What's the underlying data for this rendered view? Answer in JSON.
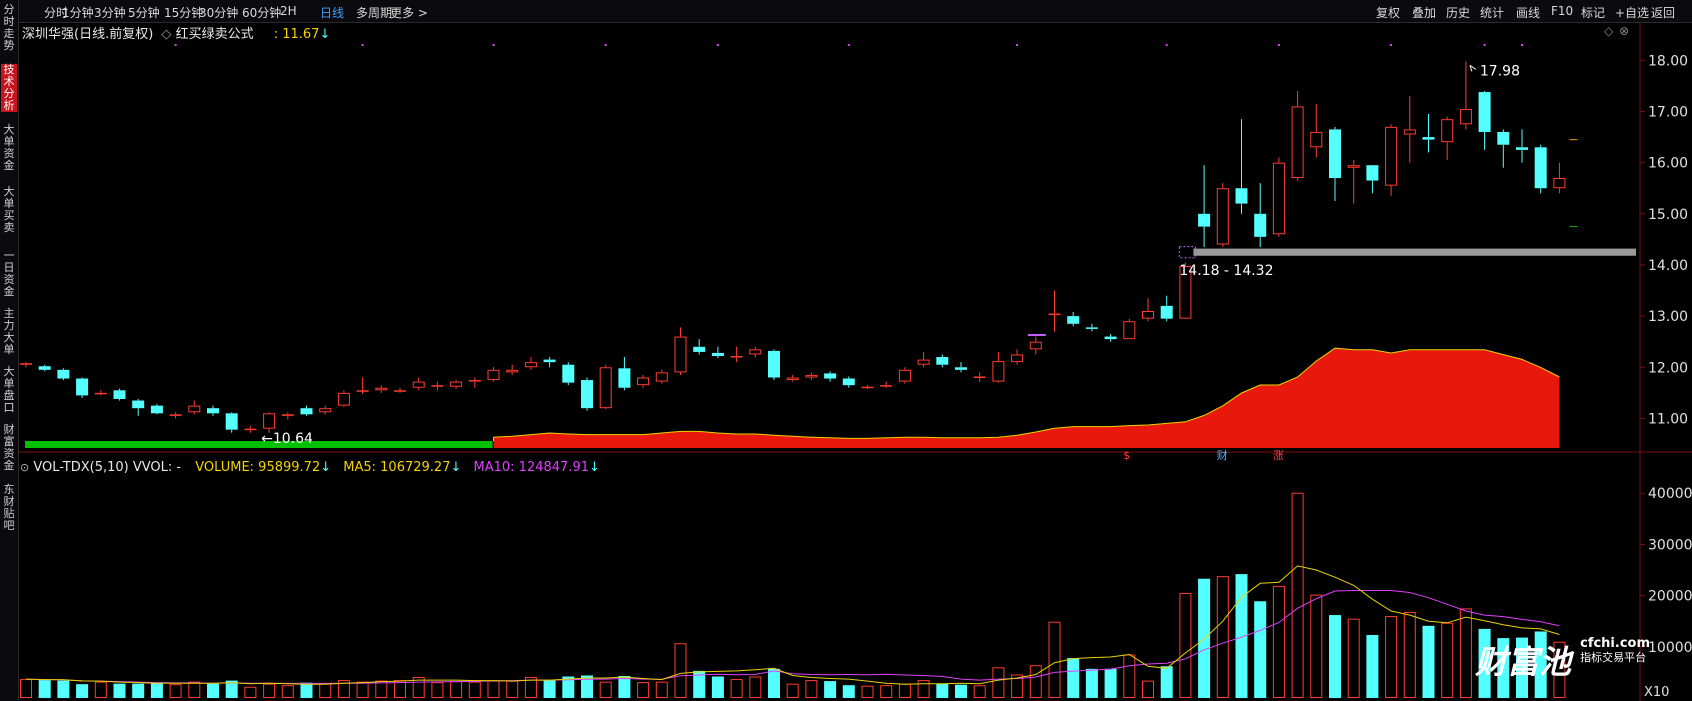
{
  "topbar": {
    "periods": [
      "分时",
      "1分钟",
      "3分钟",
      "5分钟",
      "15分钟",
      "30分钟",
      "60分钟",
      "2H",
      "日线",
      "多周期",
      "更多 >"
    ],
    "active": "日线",
    "tools": [
      "复权",
      "叠加",
      "历史",
      "统计",
      "画线",
      "F10",
      "标记",
      "+自选",
      "返回"
    ]
  },
  "sidebar": {
    "tabs": [
      "分时走势",
      "技术分析",
      "大单资金",
      "大单买卖",
      "一日资金",
      "主力大单",
      "大单盘口",
      "财富资金",
      "东财贴吧"
    ],
    "active": "技术分析"
  },
  "main_header": {
    "stock": "深圳华强(日线.前复权)",
    "diamond": "◇",
    "formula": "红买绿卖公式",
    "value": ": 11.67",
    "arrow": "↓"
  },
  "volume_header": {
    "collapse": "⊙",
    "name": "VOL-TDX(5,10) VVOL: -",
    "volume": "VOLUME: 95899.72",
    "ma5": "MA5: 106729.27",
    "ma10": "MA10: 124847.91",
    "arrow": "↓"
  },
  "corner_icons": [
    "◇",
    "⊗"
  ],
  "annotations": {
    "high": "17.98",
    "low": "10.64",
    "range": "14.18 - 14.32",
    "markers": [
      "$",
      "财",
      "涨"
    ]
  },
  "logo": {
    "name": "财富池",
    "domain": "cfchi.com",
    "tagline": "指标交易平台"
  },
  "colors": {
    "up": "#ff3b30",
    "down": "#54ffff",
    "ma5": "#e8d400",
    "ma10": "#e040fb",
    "fill_red": "#e8190c",
    "fill_green": "#00c000"
  },
  "chart_data": [
    {
      "type": "candlestick",
      "ylim": [
        10.5,
        18.3
      ],
      "yticks": [
        "18.00",
        "17.00",
        "16.00",
        "15.00",
        "14.00",
        "13.00",
        "12.00",
        "11.00"
      ],
      "candles": [
        [
          12.05,
          12.08,
          12.0,
          12.1
        ],
        [
          12.02,
          11.95,
          11.92,
          12.05
        ],
        [
          11.95,
          11.78,
          11.75,
          11.98
        ],
        [
          11.78,
          11.45,
          11.4,
          11.8
        ],
        [
          11.48,
          11.5,
          11.45,
          11.55
        ],
        [
          11.55,
          11.38,
          11.35,
          11.58
        ],
        [
          11.35,
          11.2,
          11.05,
          11.38
        ],
        [
          11.25,
          11.1,
          11.08,
          11.28
        ],
        [
          11.05,
          11.08,
          11.0,
          11.12
        ],
        [
          11.12,
          11.25,
          11.08,
          11.35
        ],
        [
          11.2,
          11.1,
          11.05,
          11.25
        ],
        [
          11.1,
          10.78,
          10.72,
          11.12
        ],
        [
          10.8,
          10.8,
          10.72,
          10.85
        ],
        [
          10.8,
          11.1,
          10.72,
          11.12
        ],
        [
          11.05,
          11.08,
          10.98,
          11.12
        ],
        [
          11.2,
          11.08,
          11.05,
          11.25
        ],
        [
          11.12,
          11.2,
          11.08,
          11.25
        ],
        [
          11.25,
          11.5,
          11.22,
          11.55
        ],
        [
          11.55,
          11.55,
          11.48,
          11.8
        ],
        [
          11.55,
          11.6,
          11.5,
          11.65
        ],
        [
          11.55,
          11.55,
          11.5,
          11.6
        ],
        [
          11.6,
          11.72,
          11.55,
          11.8
        ],
        [
          11.62,
          11.65,
          11.55,
          11.72
        ],
        [
          11.62,
          11.72,
          11.58,
          11.75
        ],
        [
          11.72,
          11.75,
          11.6,
          11.8
        ],
        [
          11.75,
          11.95,
          11.72,
          12.0
        ],
        [
          11.9,
          11.95,
          11.85,
          12.05
        ],
        [
          12.0,
          12.1,
          11.95,
          12.2
        ],
        [
          12.15,
          12.1,
          12.0,
          12.2
        ],
        [
          12.05,
          11.7,
          11.65,
          12.1
        ],
        [
          11.75,
          11.2,
          11.15,
          11.8
        ],
        [
          11.2,
          12.0,
          11.18,
          12.05
        ],
        [
          11.98,
          11.6,
          11.55,
          12.2
        ],
        [
          11.65,
          11.8,
          11.6,
          11.85
        ],
        [
          11.72,
          11.9,
          11.68,
          11.95
        ],
        [
          11.9,
          12.6,
          11.85,
          12.78
        ],
        [
          12.4,
          12.3,
          12.25,
          12.55
        ],
        [
          12.28,
          12.22,
          12.18,
          12.4
        ],
        [
          12.2,
          12.22,
          12.1,
          12.4
        ],
        [
          12.25,
          12.35,
          12.2,
          12.4
        ],
        [
          12.32,
          11.8,
          11.75,
          12.35
        ],
        [
          11.75,
          11.8,
          11.72,
          11.85
        ],
        [
          11.8,
          11.85,
          11.75,
          11.9
        ],
        [
          11.88,
          11.78,
          11.72,
          11.92
        ],
        [
          11.78,
          11.65,
          11.6,
          11.82
        ],
        [
          11.6,
          11.62,
          11.58,
          11.65
        ],
        [
          11.65,
          11.65,
          11.6,
          11.72
        ],
        [
          11.72,
          11.95,
          11.68,
          12.0
        ],
        [
          12.05,
          12.15,
          12.0,
          12.3
        ],
        [
          12.2,
          12.05,
          12.0,
          12.25
        ],
        [
          12.0,
          11.95,
          11.9,
          12.1
        ],
        [
          11.8,
          11.82,
          11.72,
          11.9
        ],
        [
          11.72,
          12.12,
          11.7,
          12.3
        ],
        [
          12.1,
          12.25,
          12.05,
          12.35
        ],
        [
          12.35,
          12.5,
          12.25,
          12.6
        ],
        [
          13.05,
          13.05,
          12.7,
          13.5
        ],
        [
          13.0,
          12.85,
          12.8,
          13.08
        ],
        [
          12.78,
          12.75,
          12.7,
          12.85
        ],
        [
          12.6,
          12.55,
          12.5,
          12.65
        ],
        [
          12.55,
          12.9,
          12.55,
          12.95
        ],
        [
          12.95,
          13.1,
          12.9,
          13.35
        ],
        [
          13.2,
          12.95,
          12.9,
          13.4
        ],
        [
          12.95,
          13.98,
          12.95,
          14.05
        ],
        [
          15.0,
          14.75,
          14.35,
          15.95
        ],
        [
          14.4,
          15.5,
          14.35,
          15.6
        ],
        [
          15.5,
          15.2,
          15.0,
          16.85
        ],
        [
          15.0,
          14.55,
          14.35,
          15.6
        ],
        [
          14.6,
          16.0,
          14.55,
          16.1
        ],
        [
          15.7,
          17.1,
          15.65,
          17.4
        ],
        [
          16.3,
          16.6,
          16.1,
          17.15
        ],
        [
          16.65,
          15.7,
          15.25,
          16.7
        ],
        [
          15.9,
          15.95,
          15.2,
          16.05
        ],
        [
          15.95,
          15.65,
          15.4,
          15.95
        ],
        [
          15.55,
          16.7,
          15.35,
          16.75
        ],
        [
          16.55,
          16.65,
          16.0,
          17.3
        ],
        [
          16.5,
          16.45,
          16.2,
          16.95
        ],
        [
          16.4,
          16.85,
          16.05,
          16.9
        ],
        [
          16.75,
          17.05,
          16.65,
          17.98
        ],
        [
          17.38,
          16.6,
          16.25,
          17.4
        ],
        [
          16.6,
          16.35,
          15.9,
          16.65
        ],
        [
          16.3,
          16.25,
          16.0,
          16.65
        ],
        [
          16.3,
          15.5,
          15.4,
          16.35
        ],
        [
          15.5,
          15.7,
          15.4,
          16.0
        ]
      ],
      "last_close_marker": 16.45,
      "secondary_marker": 14.75,
      "support_band": [
        14.18,
        14.32
      ],
      "indicator_level": [
        0,
        0,
        0,
        0,
        0,
        0,
        0,
        0,
        0,
        0,
        0,
        0,
        0,
        0,
        0,
        0,
        0,
        0,
        0,
        0,
        0,
        0,
        0,
        0,
        0,
        0.12,
        0.15,
        0.2,
        0.25,
        0.22,
        0.2,
        0.2,
        0.2,
        0.2,
        0.25,
        0.3,
        0.3,
        0.25,
        0.22,
        0.22,
        0.18,
        0.15,
        0.12,
        0.1,
        0.08,
        0.08,
        0.1,
        0.12,
        0.12,
        0.1,
        0.1,
        0.1,
        0.12,
        0.18,
        0.28,
        0.4,
        0.45,
        0.45,
        0.45,
        0.48,
        0.5,
        0.55,
        0.6,
        0.8,
        1.1,
        1.5,
        1.75,
        1.75,
        2.0,
        2.5,
        2.9,
        2.85,
        2.85,
        2.75,
        2.85,
        2.85,
        2.85,
        2.85,
        2.85,
        2.7,
        2.55,
        2.3,
        2.0
      ],
      "indicator_negative_until": 25
    },
    {
      "type": "bar",
      "title": "VOL-TDX(5,10)",
      "ylim": [
        0,
        42000
      ],
      "yticks": [
        "40000",
        "30000",
        "20000",
        "10000"
      ],
      "unit_label": "X10",
      "volumes": [
        3700,
        3500,
        3400,
        2700,
        3200,
        2800,
        2800,
        3000,
        2700,
        3200,
        2800,
        3400,
        2200,
        2800,
        2500,
        3000,
        2900,
        3500,
        3200,
        3400,
        3500,
        4100,
        3100,
        3300,
        3200,
        3400,
        3400,
        4100,
        3500,
        4200,
        4400,
        3200,
        4300,
        3100,
        3200,
        10700,
        5300,
        4200,
        3700,
        4200,
        5700,
        2800,
        3500,
        3300,
        2500,
        2400,
        2500,
        2800,
        3500,
        2800,
        2600,
        2500,
        6000,
        4600,
        6400,
        14900,
        7800,
        5700,
        5700,
        8500,
        3400,
        6200,
        20500,
        23300,
        23800,
        24200,
        18900,
        21900,
        40100,
        20200,
        16200,
        15500,
        12300,
        16000,
        16800,
        14100,
        14700,
        17500,
        13500,
        11700,
        11800,
        13000,
        11000
      ],
      "ma5": [
        3700,
        3600,
        3550,
        3350,
        3300,
        3100,
        3000,
        2900,
        2900,
        2900,
        2900,
        3000,
        2800,
        2900,
        2800,
        2700,
        2700,
        2900,
        3000,
        3200,
        3300,
        3500,
        3500,
        3500,
        3400,
        3400,
        3300,
        3500,
        3500,
        3700,
        3900,
        3900,
        4100,
        3800,
        3600,
        4800,
        5100,
        5200,
        5300,
        5500,
        5800,
        4400,
        4000,
        3800,
        3700,
        3300,
        2900,
        2700,
        2800,
        2800,
        2900,
        2800,
        3500,
        3900,
        4600,
        6900,
        7700,
        7900,
        8000,
        8500,
        6200,
        5800,
        8800,
        11500,
        15000,
        19700,
        22400,
        22600,
        25800,
        25000,
        23600,
        22000,
        19300,
        17000,
        16200,
        15000,
        14700,
        15800,
        15100,
        14300,
        13700,
        13500,
        12400
      ],
      "ma10": [
        3700,
        3600,
        3550,
        3350,
        3300,
        3200,
        3100,
        3000,
        2950,
        2950,
        2900,
        2950,
        2900,
        2900,
        2850,
        2850,
        2850,
        2900,
        2900,
        2950,
        3000,
        3100,
        3150,
        3200,
        3250,
        3350,
        3400,
        3500,
        3500,
        3550,
        3650,
        3700,
        3800,
        3700,
        3650,
        4350,
        4500,
        4650,
        4550,
        4600,
        5300,
        4750,
        4600,
        4550,
        4600,
        4550,
        4650,
        4500,
        4400,
        4200,
        3700,
        3500,
        3700,
        3800,
        4100,
        5000,
        5250,
        5450,
        5650,
        6300,
        6650,
        6800,
        7650,
        9400,
        10700,
        11900,
        13200,
        14750,
        17550,
        19400,
        20900,
        21000,
        21000,
        21000,
        20600,
        19600,
        18300,
        17000,
        16200,
        15900,
        15350,
        14900,
        14100
      ]
    }
  ]
}
